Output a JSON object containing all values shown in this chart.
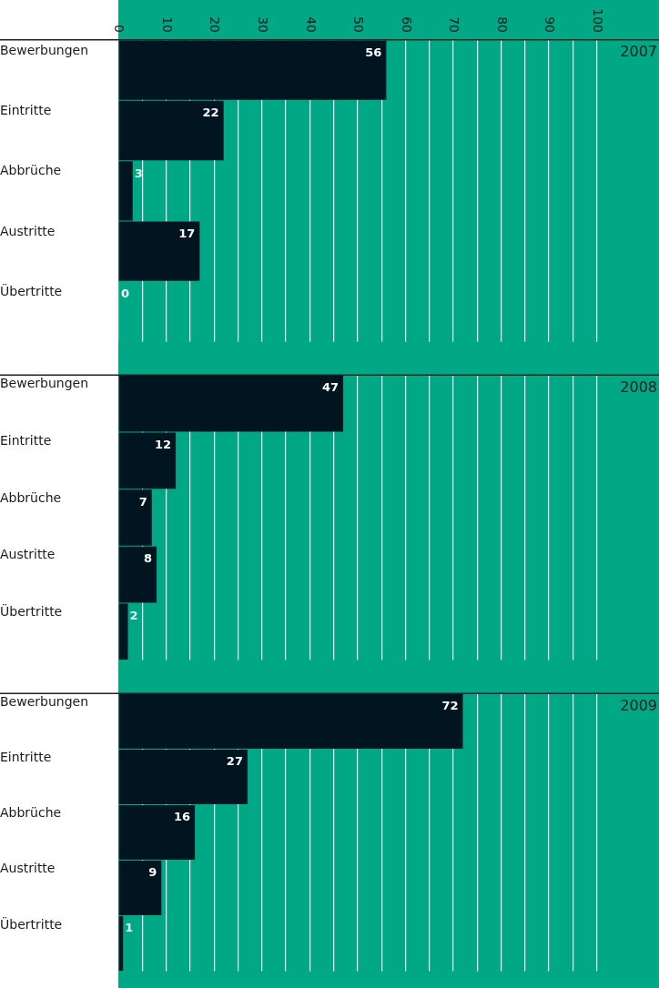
{
  "chart_data": [
    {
      "type": "bar",
      "orientation": "horizontal",
      "title": "2007",
      "categories": [
        "Bewerbungen",
        "Eintritte",
        "Abbrüche",
        "Austritte",
        "Übertritte"
      ],
      "values": [
        56,
        22,
        3,
        17,
        0
      ],
      "color": "#011520",
      "xlim": [
        0,
        113
      ],
      "xticks": [
        0,
        {
          "value": 5,
          "label": null
        },
        10,
        {
          "value": 15,
          "label": null
        },
        20,
        {
          "value": 25,
          "label": null
        },
        30,
        {
          "value": 35,
          "label": null
        },
        40,
        {
          "value": 45,
          "label": null
        },
        50,
        {
          "value": 55,
          "label": null
        },
        60,
        {
          "value": 65,
          "label": null
        },
        70,
        {
          "value": 75,
          "label": null
        },
        80,
        {
          "value": 85,
          "label": null
        },
        90,
        {
          "value": 95,
          "label": null
        },
        100
      ],
      "grid": "x",
      "data_labels": true
    },
    {
      "type": "bar",
      "orientation": "horizontal",
      "title": "2008",
      "categories": [
        "Bewerbungen",
        "Eintritte",
        "Abbrüche",
        "Austritte",
        "Übertritte"
      ],
      "values": [
        47,
        12,
        7,
        8,
        2
      ],
      "color": "#011520",
      "xlim": [
        0,
        113
      ],
      "xticks": [
        0,
        {
          "value": 5,
          "label": null
        },
        10,
        {
          "value": 15,
          "label": null
        },
        20,
        {
          "value": 25,
          "label": null
        },
        30,
        {
          "value": 35,
          "label": null
        },
        40,
        {
          "value": 45,
          "label": null
        },
        50,
        {
          "value": 55,
          "label": null
        },
        60,
        {
          "value": 65,
          "label": null
        },
        70,
        {
          "value": 75,
          "label": null
        },
        80,
        {
          "value": 85,
          "label": null
        },
        90,
        {
          "value": 95,
          "label": null
        },
        100
      ],
      "grid": "x",
      "data_labels": true,
      "tick_labels": "y"
    },
    {
      "type": "bar",
      "orientation": "horizontal",
      "title": "2009",
      "categories": [
        "Bewerbungen",
        "Eintritte",
        "Abbrüche",
        "Austritte",
        "Übertritte"
      ],
      "values": [
        72,
        27,
        16,
        9,
        1
      ],
      "color": "#011520",
      "xlim": [
        0,
        113
      ],
      "xticks": [
        0,
        {
          "value": 5,
          "label": null
        },
        10,
        {
          "value": 15,
          "label": null
        },
        20,
        {
          "value": 25,
          "label": null
        },
        30,
        {
          "value": 35,
          "label": null
        },
        40,
        {
          "value": 45,
          "label": null
        },
        50,
        {
          "value": 55,
          "label": null
        },
        60,
        {
          "value": 65,
          "label": null
        },
        70,
        {
          "value": 75,
          "label": null
        },
        80,
        {
          "value": 85,
          "label": null
        },
        90,
        {
          "value": 95,
          "label": null
        },
        100
      ],
      "grid": "x",
      "data_labels": true,
      "tick_labels": "y"
    }
  ]
}
